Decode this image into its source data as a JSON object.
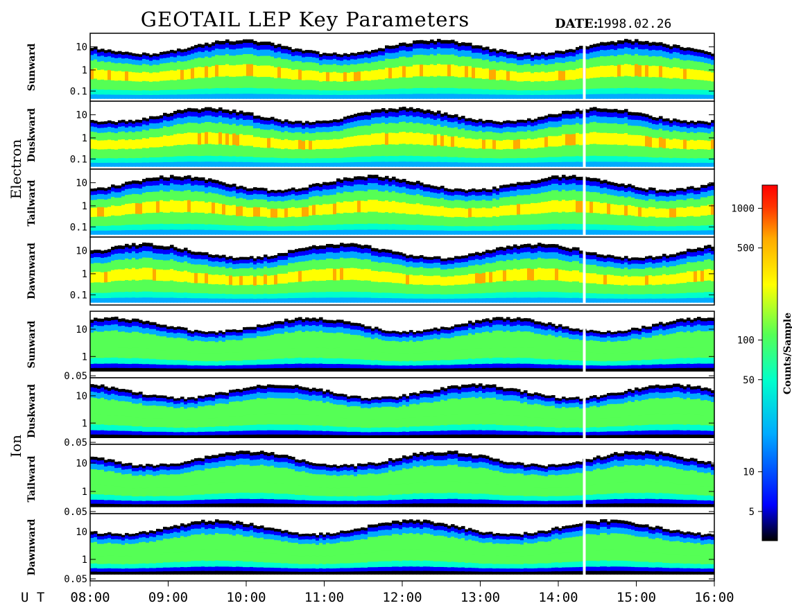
{
  "header": {
    "title": "GEOTAIL LEP Key Parameters",
    "date_label": "DATE:",
    "date_value": "1998.02.26"
  },
  "colors": {
    "scale": [
      "#000000",
      "#0000ff",
      "#00aaff",
      "#00ffcc",
      "#55ff55",
      "#ffff00",
      "#ffaa00",
      "#ff3300",
      "#ff0000"
    ]
  },
  "chart_data": {
    "type": "heatmap",
    "x_axis": {
      "label": "U T",
      "ticks": [
        "08:00",
        "09:00",
        "10:00",
        "11:00",
        "12:00",
        "13:00",
        "14:00",
        "15:00",
        "16:00"
      ],
      "range": [
        "08:00",
        "16:00"
      ]
    },
    "groups": [
      {
        "name": "Electron",
        "y_scale": "log",
        "y_ticks": [
          "10",
          "1",
          "0.1"
        ],
        "panels": [
          {
            "name": "Sunward"
          },
          {
            "name": "Duskward"
          },
          {
            "name": "Tailward"
          },
          {
            "name": "Dawnward"
          }
        ]
      },
      {
        "name": "Ion",
        "y_scale": "log",
        "y_ticks": [
          "10",
          "1",
          "0.05"
        ],
        "panels": [
          {
            "name": "Sunward"
          },
          {
            "name": "Duskward"
          },
          {
            "name": "Tailward"
          },
          {
            "name": "Dawnward"
          }
        ]
      }
    ],
    "data_gap_ut": "14:20",
    "colorbar": {
      "label": "Counts/Sample",
      "scale": "log",
      "ticks": [
        "1000",
        "500",
        "100",
        "50",
        "10",
        "5"
      ],
      "range": [
        3,
        1500
      ]
    }
  }
}
